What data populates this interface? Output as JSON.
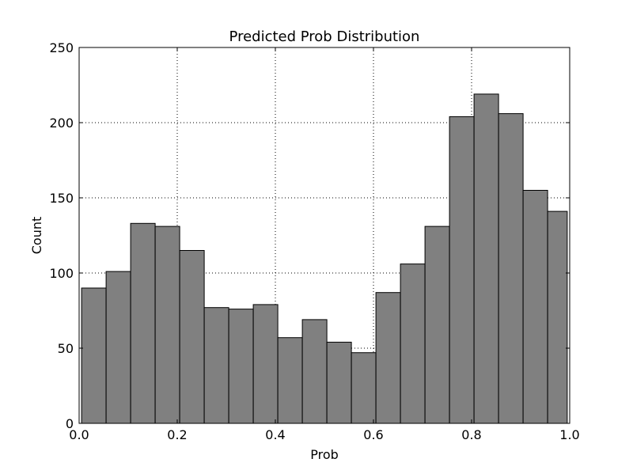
{
  "chart_data": {
    "type": "bar",
    "title": "Predicted Prob Distribution",
    "xlabel": "Prob",
    "ylabel": "Count",
    "xlim": [
      0.0,
      1.0
    ],
    "ylim": [
      0,
      250
    ],
    "x_ticks": [
      0.0,
      0.2,
      0.4,
      0.6,
      0.8,
      1.0
    ],
    "x_tick_labels": [
      "0.0",
      "0.2",
      "0.4",
      "0.6",
      "0.8",
      "1.0"
    ],
    "y_ticks": [
      0,
      50,
      100,
      150,
      200,
      250
    ],
    "y_tick_labels": [
      "0",
      "50",
      "100",
      "150",
      "200",
      "250"
    ],
    "grid": true,
    "bin_edges": [
      0.005,
      0.055,
      0.105,
      0.155,
      0.205,
      0.255,
      0.305,
      0.355,
      0.405,
      0.455,
      0.505,
      0.555,
      0.605,
      0.655,
      0.705,
      0.755,
      0.805,
      0.855,
      0.905,
      0.955,
      0.995
    ],
    "values": [
      90,
      101,
      133,
      131,
      115,
      77,
      76,
      79,
      57,
      69,
      54,
      47,
      87,
      106,
      131,
      204,
      219,
      206,
      155,
      141
    ],
    "bar_color": "#808080",
    "edge_color": "#000000"
  }
}
